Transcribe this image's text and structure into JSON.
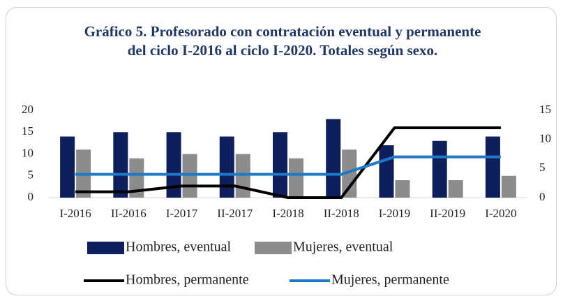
{
  "chart_data": {
    "type": "bar",
    "title": "Gráfico 5. Profesorado con contratación eventual y permanente del ciclo I-2016 al ciclo I-2020. Totales según sexo.",
    "categories": [
      "I-2016",
      "II-2016",
      "I-2017",
      "II-2017",
      "I-2018",
      "II-2018",
      "I-2019",
      "II-2019",
      "I-2020"
    ],
    "series": [
      {
        "name": "Hombres, eventual",
        "type": "bar",
        "color": "#0d1f5c",
        "values": [
          14,
          15,
          15,
          14,
          15,
          18,
          12,
          13,
          14
        ]
      },
      {
        "name": "Mujeres, eventual",
        "type": "bar",
        "color": "#8c8c8c",
        "values": [
          11,
          9,
          10,
          10,
          9,
          11,
          4,
          4,
          5
        ]
      },
      {
        "name": "Hombres, permanente",
        "type": "line",
        "axis": "y2",
        "color": "#000000",
        "values": [
          1,
          1,
          2,
          2,
          0,
          0,
          12,
          12,
          12
        ]
      },
      {
        "name": "Mujeres, permanente",
        "type": "line",
        "axis": "y2",
        "color": "#1f78c8",
        "values": [
          4,
          4,
          4,
          4,
          4,
          4,
          7,
          7,
          7
        ]
      }
    ],
    "ylim": [
      0,
      20
    ],
    "yticks": [
      0,
      5,
      10,
      15,
      20
    ],
    "y2lim": [
      0,
      15
    ],
    "y2ticks": [
      0,
      5,
      10,
      15
    ],
    "legend": "bottom"
  }
}
